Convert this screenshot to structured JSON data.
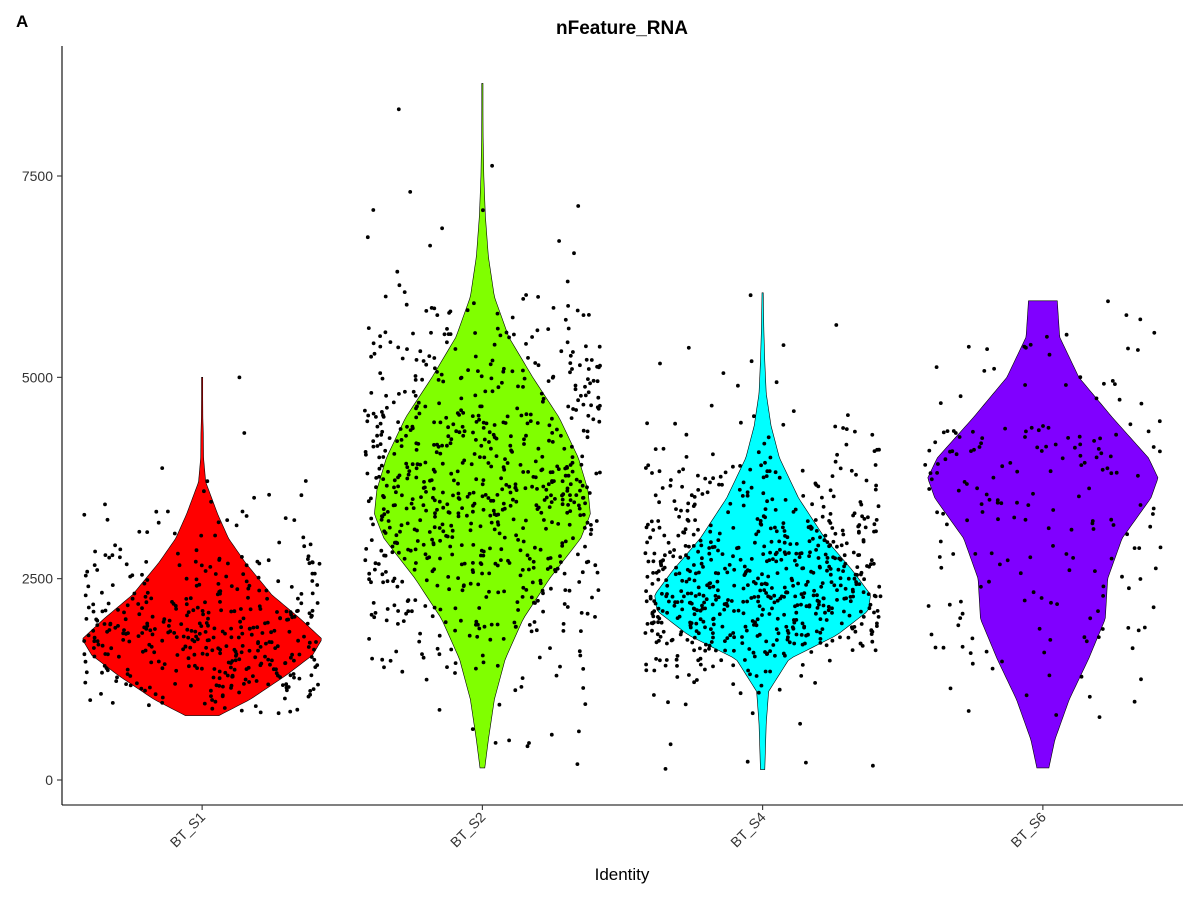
{
  "panel_tag": "A",
  "chart_data": {
    "type": "violin",
    "title": "nFeature_RNA",
    "xlabel": "Identity",
    "ylabel": "",
    "ylim": [
      -300,
      9150
    ],
    "yticks": [
      0,
      2500,
      5000,
      7500
    ],
    "ytick_labels": [
      "0",
      "2500",
      "5000",
      "7500"
    ],
    "grid": false,
    "legend": "none",
    "categories": [
      "BT_S1",
      "BT_S2",
      "BT_S4",
      "BT_S6"
    ],
    "groups": [
      {
        "name": "BT_S1",
        "color": "#FF0000",
        "min": 800,
        "max": 5000,
        "n_points": 420,
        "density": [
          [
            800,
            0.14
          ],
          [
            1000,
            0.4
          ],
          [
            1300,
            0.7
          ],
          [
            1550,
            0.92
          ],
          [
            1750,
            1.0
          ],
          [
            2000,
            0.82
          ],
          [
            2300,
            0.58
          ],
          [
            2700,
            0.36
          ],
          [
            3000,
            0.22
          ],
          [
            3300,
            0.13
          ],
          [
            3500,
            0.08
          ],
          [
            3700,
            0.03
          ],
          [
            4000,
            0.012
          ],
          [
            4300,
            0.01
          ],
          [
            4500,
            0.006
          ],
          [
            5000,
            0.004
          ]
        ]
      },
      {
        "name": "BT_S2",
        "color": "#80FF00",
        "min": 150,
        "max": 8650,
        "n_points": 760,
        "density": [
          [
            150,
            0.02
          ],
          [
            500,
            0.05
          ],
          [
            1000,
            0.1
          ],
          [
            1500,
            0.19
          ],
          [
            2000,
            0.34
          ],
          [
            2500,
            0.56
          ],
          [
            3000,
            0.82
          ],
          [
            3300,
            0.9
          ],
          [
            3600,
            0.88
          ],
          [
            4000,
            0.8
          ],
          [
            4500,
            0.64
          ],
          [
            5000,
            0.42
          ],
          [
            5500,
            0.22
          ],
          [
            6000,
            0.1
          ],
          [
            6500,
            0.05
          ],
          [
            7000,
            0.025
          ],
          [
            7500,
            0.012
          ],
          [
            8000,
            0.006
          ],
          [
            8650,
            0.004
          ]
        ]
      },
      {
        "name": "BT_S4",
        "color": "#00FFFF",
        "min": 130,
        "max": 6050,
        "n_points": 700,
        "density": [
          [
            130,
            0.018
          ],
          [
            700,
            0.03
          ],
          [
            1100,
            0.05
          ],
          [
            1500,
            0.22
          ],
          [
            1800,
            0.62
          ],
          [
            2100,
            0.88
          ],
          [
            2300,
            0.9
          ],
          [
            2600,
            0.75
          ],
          [
            3000,
            0.52
          ],
          [
            3500,
            0.3
          ],
          [
            4000,
            0.14
          ],
          [
            4400,
            0.07
          ],
          [
            4800,
            0.03
          ],
          [
            5200,
            0.018
          ],
          [
            5600,
            0.01
          ],
          [
            6050,
            0.005
          ]
        ]
      },
      {
        "name": "BT_S6",
        "color": "#8000FF",
        "min": 150,
        "max": 5950,
        "n_points": 200,
        "density": [
          [
            150,
            0.05
          ],
          [
            500,
            0.1
          ],
          [
            1000,
            0.22
          ],
          [
            1500,
            0.38
          ],
          [
            2000,
            0.52
          ],
          [
            2500,
            0.54
          ],
          [
            3000,
            0.66
          ],
          [
            3500,
            0.9
          ],
          [
            3750,
            0.96
          ],
          [
            4000,
            0.88
          ],
          [
            4500,
            0.58
          ],
          [
            5000,
            0.3
          ],
          [
            5500,
            0.14
          ],
          [
            5950,
            0.12
          ]
        ]
      }
    ]
  }
}
